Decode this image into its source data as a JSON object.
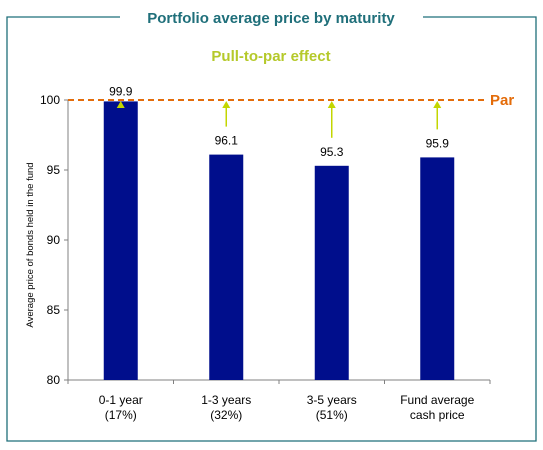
{
  "chart_data": {
    "type": "bar",
    "title": "Portfolio average price by maturity",
    "subtitle": "Pull-to-par effect",
    "ylabel": "Average price of bonds held in the fund",
    "xlabel": "",
    "categories": [
      [
        "0-1 year",
        "(17%)"
      ],
      [
        "1-3 years",
        "(32%)"
      ],
      [
        "3-5 years",
        "(51%)"
      ],
      [
        "Fund average",
        "cash price"
      ]
    ],
    "values": [
      99.9,
      96.1,
      95.3,
      95.9
    ],
    "value_labels": [
      "99.9",
      "96.1",
      "95.3",
      "95.9"
    ],
    "ylim": [
      80,
      100
    ],
    "yticks": [
      80,
      85,
      90,
      95,
      100
    ],
    "reference_line": {
      "value": 100,
      "label": "Par",
      "color": "#e46c0a",
      "style": "dashed"
    },
    "arrows_to_par": true,
    "colors": {
      "bar": "#000e8c",
      "title": "#1f6f7a",
      "subtitle": "#b5c92a",
      "arrow": "#c3d600",
      "frame": "#1f6f7a",
      "axis": "#808080"
    },
    "grid": false,
    "legend": "none"
  }
}
